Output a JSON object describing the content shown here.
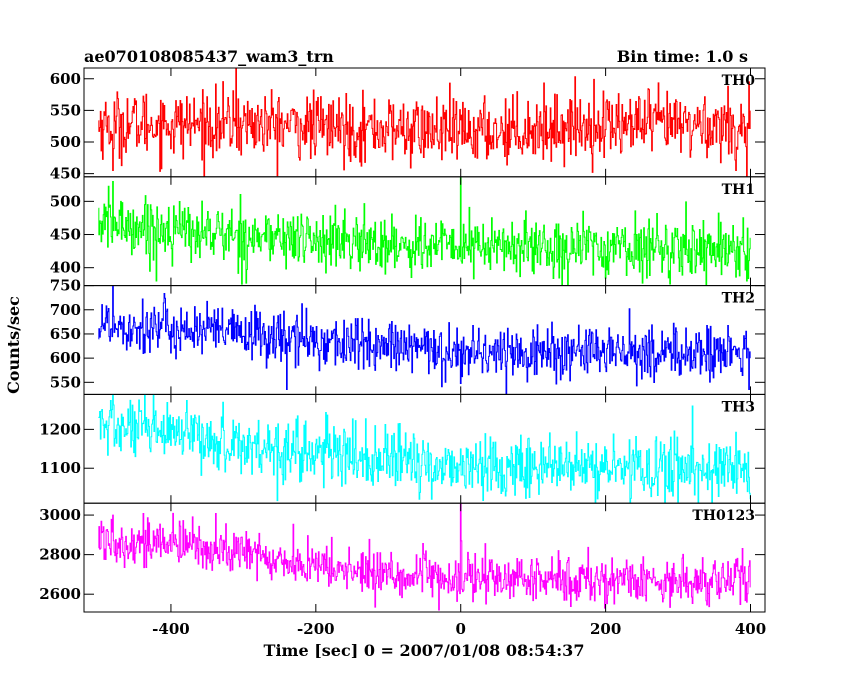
{
  "header": {
    "title": "ae070108085437_wam3_trn",
    "bin_time": "Bin time: 1.0 s"
  },
  "chart_data": {
    "type": "line",
    "xlabel": "Time [sec] 0 = 2007/01/08 08:54:37",
    "ylabel": "Counts/sec",
    "xlim": [
      -520,
      420
    ],
    "xticks": [
      -400,
      -200,
      0,
      200,
      400
    ],
    "time_range": [
      -500,
      400
    ],
    "bin_time_s": 1.0,
    "panels": [
      {
        "name": "TH0",
        "color": "#ff0000",
        "ylim": [
          445,
          617
        ],
        "yticks": [
          450,
          500,
          550,
          600
        ],
        "noise": 26,
        "trend": [
          [
            -500,
            528
          ],
          [
            -300,
            528
          ],
          [
            -100,
            520
          ],
          [
            0,
            515
          ],
          [
            200,
            528
          ],
          [
            400,
            525
          ]
        ],
        "spikes": [
          [
            -310,
            620
          ],
          [
            -480,
            455
          ],
          [
            380,
            455
          ],
          [
            395,
            445
          ]
        ]
      },
      {
        "name": "TH1",
        "color": "#00ff00",
        "ylim": [
          373,
          537
        ],
        "yticks": [
          400,
          450,
          500
        ],
        "noise": 22,
        "trend": [
          [
            -500,
            468
          ],
          [
            -300,
            448
          ],
          [
            -100,
            435
          ],
          [
            0,
            432
          ],
          [
            200,
            430
          ],
          [
            400,
            430
          ]
        ],
        "spikes": [
          [
            0,
            540
          ],
          [
            -480,
            530
          ],
          [
            -420,
            380
          ],
          [
            395,
            380
          ]
        ]
      },
      {
        "name": "TH2",
        "color": "#0000ff",
        "ylim": [
          525,
          750
        ],
        "yticks": [
          550,
          600,
          650,
          700,
          750
        ],
        "noise": 28,
        "trend": [
          [
            -500,
            672
          ],
          [
            -300,
            650
          ],
          [
            -100,
            622
          ],
          [
            0,
            612
          ],
          [
            200,
            612
          ],
          [
            400,
            610
          ]
        ],
        "spikes": [
          [
            -480,
            752
          ],
          [
            -240,
            535
          ],
          [
            398,
            535
          ]
        ]
      },
      {
        "name": "TH3",
        "color": "#00ffff",
        "ylim": [
          1010,
          1290
        ],
        "yticks": [
          1100,
          1200
        ],
        "noise": 40,
        "trend": [
          [
            -500,
            1210
          ],
          [
            -300,
            1160
          ],
          [
            -100,
            1120
          ],
          [
            0,
            1105
          ],
          [
            200,
            1100
          ],
          [
            400,
            1100
          ]
        ],
        "spikes": [
          [
            -480,
            1290
          ],
          [
            -40,
            1020
          ],
          [
            320,
            1260
          ]
        ]
      },
      {
        "name": "TH0123",
        "color": "#ff00ff",
        "ylim": [
          2510,
          3060
        ],
        "yticks": [
          2600,
          2800,
          3000
        ],
        "noise": 60,
        "trend": [
          [
            -500,
            2880
          ],
          [
            -350,
            2840
          ],
          [
            -200,
            2740
          ],
          [
            -100,
            2700
          ],
          [
            0,
            2680
          ],
          [
            200,
            2670
          ],
          [
            400,
            2670
          ]
        ],
        "spikes": [
          [
            0,
            3060
          ],
          [
            -480,
            3000
          ],
          [
            -30,
            2520
          ],
          [
            395,
            2560
          ]
        ]
      }
    ]
  }
}
